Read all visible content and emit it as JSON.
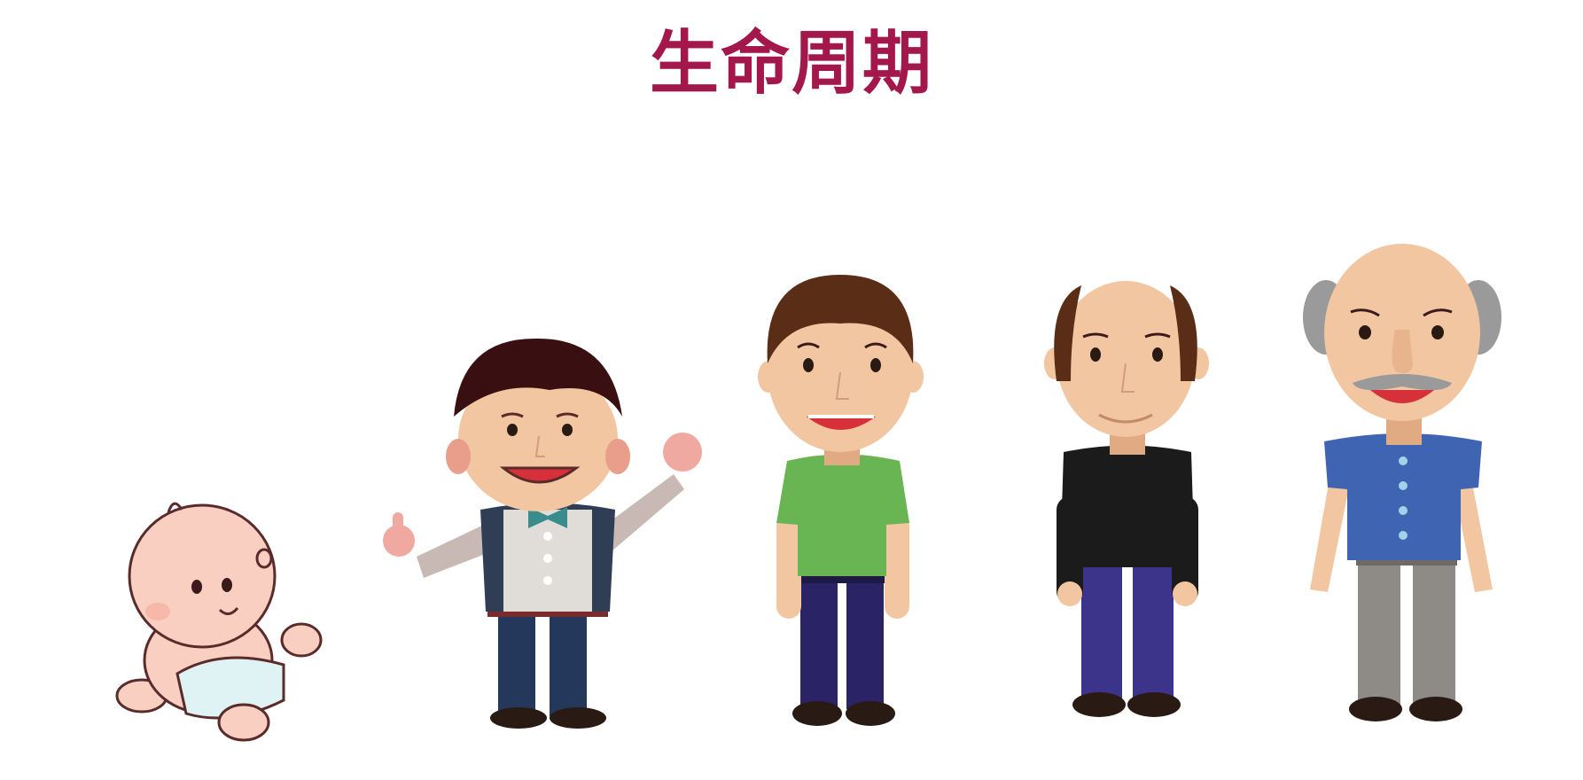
{
  "title": "生命周期",
  "colors": {
    "title": "#a3174a",
    "skin": "#f1c6a0",
    "baby_skin": "#f8cfc1",
    "cheek": "#e89e8a",
    "outline": "#5a2b2b",
    "mouth": "#d6303a",
    "child_hair": "#3a0f12",
    "child_vest": "#e0ddd8",
    "child_jacket": "#2f3d55",
    "child_pants": "#23385a",
    "bowtie": "#3a8c8c",
    "teen_hair": "#5a2d16",
    "teen_shirt": "#6ab553",
    "teen_pants": "#2a2466",
    "adult_hair": "#5a2d16",
    "adult_shirt": "#1b1b1b",
    "adult_pants": "#3c338a",
    "elder_hair": "#9a9a9a",
    "elder_shirt": "#3f64b2",
    "elder_pants": "#8e8a86",
    "shoe": "#2a1a14",
    "diaper": "#dff2f4"
  },
  "figures": [
    {
      "stage": "baby",
      "icon": "baby-icon"
    },
    {
      "stage": "child",
      "icon": "child-icon"
    },
    {
      "stage": "young-adult",
      "icon": "young-adult-icon"
    },
    {
      "stage": "middle-aged",
      "icon": "middle-aged-icon"
    },
    {
      "stage": "elderly",
      "icon": "elderly-icon"
    }
  ]
}
